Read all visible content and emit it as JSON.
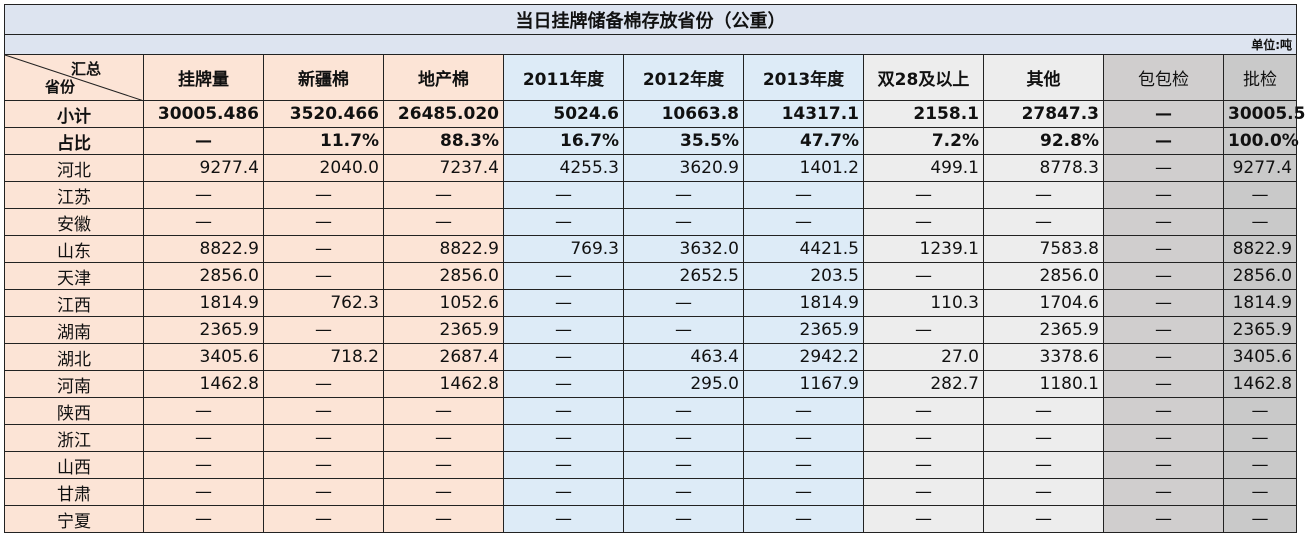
{
  "title": "当日挂牌储备棉存放省份（公重）",
  "unit": "单位:吨",
  "corner": {
    "top": "汇总",
    "bottom": "省份"
  },
  "columns": [
    "挂牌量",
    "新疆棉",
    "地产棉",
    "2011年度",
    "2012年度",
    "2013年度",
    "双28及以上",
    "其他",
    "包包检",
    "批检"
  ],
  "rows": [
    {
      "label": "小计",
      "cells": [
        "30005.486",
        "3520.466",
        "26485.020",
        "5024.6",
        "10663.8",
        "14317.1",
        "2158.1",
        "27847.3",
        "—",
        "30005.5"
      ]
    },
    {
      "label": "占比",
      "cells": [
        "—",
        "11.7%",
        "88.3%",
        "16.7%",
        "35.5%",
        "47.7%",
        "7.2%",
        "92.8%",
        "—",
        "100.0%"
      ]
    },
    {
      "label": "河北",
      "cells": [
        "9277.4",
        "2040.0",
        "7237.4",
        "4255.3",
        "3620.9",
        "1401.2",
        "499.1",
        "8778.3",
        "—",
        "9277.4"
      ]
    },
    {
      "label": "江苏",
      "cells": [
        "—",
        "—",
        "—",
        "—",
        "—",
        "—",
        "—",
        "—",
        "—",
        "—"
      ]
    },
    {
      "label": "安徽",
      "cells": [
        "—",
        "—",
        "—",
        "—",
        "—",
        "—",
        "—",
        "—",
        "—",
        "—"
      ]
    },
    {
      "label": "山东",
      "cells": [
        "8822.9",
        "—",
        "8822.9",
        "769.3",
        "3632.0",
        "4421.5",
        "1239.1",
        "7583.8",
        "—",
        "8822.9"
      ]
    },
    {
      "label": "天津",
      "cells": [
        "2856.0",
        "—",
        "2856.0",
        "—",
        "2652.5",
        "203.5",
        "—",
        "2856.0",
        "—",
        "2856.0"
      ]
    },
    {
      "label": "江西",
      "cells": [
        "1814.9",
        "762.3",
        "1052.6",
        "—",
        "—",
        "1814.9",
        "110.3",
        "1704.6",
        "—",
        "1814.9"
      ]
    },
    {
      "label": "湖南",
      "cells": [
        "2365.9",
        "—",
        "2365.9",
        "—",
        "—",
        "2365.9",
        "—",
        "2365.9",
        "—",
        "2365.9"
      ]
    },
    {
      "label": "湖北",
      "cells": [
        "3405.6",
        "718.2",
        "2687.4",
        "—",
        "463.4",
        "2942.2",
        "27.0",
        "3378.6",
        "—",
        "3405.6"
      ]
    },
    {
      "label": "河南",
      "cells": [
        "1462.8",
        "—",
        "1462.8",
        "—",
        "295.0",
        "1167.9",
        "282.7",
        "1180.1",
        "—",
        "1462.8"
      ]
    },
    {
      "label": "陕西",
      "cells": [
        "—",
        "—",
        "—",
        "—",
        "—",
        "—",
        "—",
        "—",
        "—",
        "—"
      ]
    },
    {
      "label": "浙江",
      "cells": [
        "—",
        "—",
        "—",
        "—",
        "—",
        "—",
        "—",
        "—",
        "—",
        "—"
      ]
    },
    {
      "label": "山西",
      "cells": [
        "—",
        "—",
        "—",
        "—",
        "—",
        "—",
        "—",
        "—",
        "—",
        "—"
      ]
    },
    {
      "label": "甘肃",
      "cells": [
        "—",
        "—",
        "—",
        "—",
        "—",
        "—",
        "—",
        "—",
        "—",
        "—"
      ]
    },
    {
      "label": "宁夏",
      "cells": [
        "—",
        "—",
        "—",
        "—",
        "—",
        "—",
        "—",
        "—",
        "—",
        "—"
      ]
    }
  ]
}
